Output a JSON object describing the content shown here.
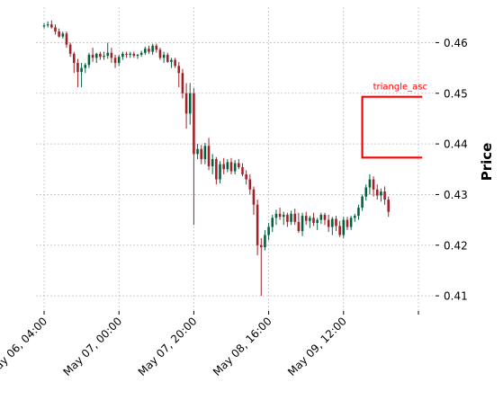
{
  "chart_data": {
    "type": "candlestick",
    "ylabel": "Price",
    "ylim": [
      0.407,
      0.467
    ],
    "yticks": [
      0.41,
      0.42,
      0.43,
      0.44,
      0.45,
      0.46
    ],
    "ytick_labels": [
      "0.41",
      "0.42",
      "0.43",
      "0.44",
      "0.45",
      "0.46"
    ],
    "yaxis_side": "right",
    "grid": true,
    "xticks": [
      {
        "index": 0,
        "label": "May 06, 04:00"
      },
      {
        "index": 20,
        "label": "May 07, 00:00"
      },
      {
        "index": 40,
        "label": "May 07, 20:00"
      },
      {
        "index": 60,
        "label": "May 08, 16:00"
      },
      {
        "index": 80,
        "label": "May 09, 12:00"
      },
      {
        "index": 100,
        "label": ""
      }
    ],
    "colors": {
      "up": "#006340",
      "down": "#a02128",
      "annotation": "#ff0000",
      "grid": "#b0b0b0"
    },
    "candles": [
      [
        0.4632,
        0.4638,
        0.4628,
        0.4634
      ],
      [
        0.4634,
        0.4642,
        0.463,
        0.4636
      ],
      [
        0.4636,
        0.4644,
        0.4628,
        0.463
      ],
      [
        0.463,
        0.4636,
        0.4616,
        0.4622
      ],
      [
        0.4622,
        0.4628,
        0.461,
        0.4612
      ],
      [
        0.4612,
        0.4622,
        0.4608,
        0.4618
      ],
      [
        0.4618,
        0.4622,
        0.459,
        0.4596
      ],
      [
        0.4596,
        0.46,
        0.4572,
        0.4578
      ],
      [
        0.4578,
        0.4582,
        0.454,
        0.456
      ],
      [
        0.456,
        0.4568,
        0.4512,
        0.4542
      ],
      [
        0.4542,
        0.456,
        0.4512,
        0.455
      ],
      [
        0.455,
        0.456,
        0.454,
        0.4556
      ],
      [
        0.4556,
        0.458,
        0.455,
        0.4576
      ],
      [
        0.4576,
        0.459,
        0.4562,
        0.457
      ],
      [
        0.457,
        0.458,
        0.456,
        0.4578
      ],
      [
        0.4578,
        0.4582,
        0.4566,
        0.4572
      ],
      [
        0.4572,
        0.4582,
        0.4566,
        0.4574
      ],
      [
        0.4574,
        0.46,
        0.4568,
        0.458
      ],
      [
        0.458,
        0.459,
        0.456,
        0.457
      ],
      [
        0.457,
        0.4576,
        0.455,
        0.456
      ],
      [
        0.456,
        0.4576,
        0.4554,
        0.4572
      ],
      [
        0.4572,
        0.4582,
        0.4566,
        0.4578
      ],
      [
        0.4578,
        0.4582,
        0.457,
        0.4576
      ],
      [
        0.4576,
        0.4582,
        0.457,
        0.4578
      ],
      [
        0.4578,
        0.4582,
        0.457,
        0.4574
      ],
      [
        0.4574,
        0.4578,
        0.4568,
        0.4576
      ],
      [
        0.4576,
        0.4584,
        0.4572,
        0.458
      ],
      [
        0.458,
        0.4592,
        0.4576,
        0.4588
      ],
      [
        0.4588,
        0.4594,
        0.4578,
        0.4582
      ],
      [
        0.4582,
        0.4598,
        0.4576,
        0.4594
      ],
      [
        0.4594,
        0.4598,
        0.458,
        0.4586
      ],
      [
        0.4586,
        0.459,
        0.4566,
        0.457
      ],
      [
        0.457,
        0.4582,
        0.456,
        0.4576
      ],
      [
        0.4576,
        0.458,
        0.456,
        0.4562
      ],
      [
        0.4562,
        0.457,
        0.455,
        0.4566
      ],
      [
        0.4566,
        0.457,
        0.455,
        0.4554
      ],
      [
        0.4554,
        0.4562,
        0.4512,
        0.454
      ],
      [
        0.454,
        0.4548,
        0.449,
        0.45
      ],
      [
        0.45,
        0.452,
        0.443,
        0.446
      ],
      [
        0.446,
        0.452,
        0.4438,
        0.45
      ],
      [
        0.45,
        0.451,
        0.424,
        0.438
      ],
      [
        0.438,
        0.44,
        0.437,
        0.439
      ],
      [
        0.439,
        0.4398,
        0.436,
        0.437
      ],
      [
        0.437,
        0.4402,
        0.436,
        0.4396
      ],
      [
        0.4396,
        0.4412,
        0.4348,
        0.4356
      ],
      [
        0.4356,
        0.438,
        0.434,
        0.437
      ],
      [
        0.437,
        0.4374,
        0.432,
        0.433
      ],
      [
        0.433,
        0.4366,
        0.4322,
        0.436
      ],
      [
        0.436,
        0.4372,
        0.434,
        0.435
      ],
      [
        0.435,
        0.437,
        0.4344,
        0.4364
      ],
      [
        0.4364,
        0.4372,
        0.434,
        0.4346
      ],
      [
        0.4346,
        0.4368,
        0.434,
        0.4362
      ],
      [
        0.4362,
        0.437,
        0.435,
        0.4354
      ],
      [
        0.4354,
        0.4362,
        0.4336,
        0.434
      ],
      [
        0.434,
        0.4348,
        0.432,
        0.433
      ],
      [
        0.433,
        0.434,
        0.43,
        0.431
      ],
      [
        0.431,
        0.4316,
        0.426,
        0.428
      ],
      [
        0.428,
        0.429,
        0.418,
        0.42
      ],
      [
        0.42,
        0.4214,
        0.41,
        0.4196
      ],
      [
        0.4196,
        0.423,
        0.419,
        0.422
      ],
      [
        0.422,
        0.4244,
        0.421,
        0.4236
      ],
      [
        0.4236,
        0.426,
        0.4226,
        0.4254
      ],
      [
        0.4254,
        0.427,
        0.424,
        0.4262
      ],
      [
        0.4262,
        0.4274,
        0.425,
        0.4256
      ],
      [
        0.4256,
        0.4266,
        0.424,
        0.426
      ],
      [
        0.426,
        0.4264,
        0.4236,
        0.4246
      ],
      [
        0.4246,
        0.4268,
        0.424,
        0.4262
      ],
      [
        0.4262,
        0.4272,
        0.424,
        0.4246
      ],
      [
        0.4246,
        0.4264,
        0.4224,
        0.4228
      ],
      [
        0.4228,
        0.4264,
        0.4218,
        0.4258
      ],
      [
        0.4258,
        0.4266,
        0.424,
        0.4248
      ],
      [
        0.4248,
        0.4258,
        0.4234,
        0.4254
      ],
      [
        0.4254,
        0.4264,
        0.4238,
        0.4244
      ],
      [
        0.4244,
        0.4254,
        0.423,
        0.425
      ],
      [
        0.425,
        0.4264,
        0.4242,
        0.426
      ],
      [
        0.426,
        0.4264,
        0.424,
        0.425
      ],
      [
        0.425,
        0.426,
        0.4226,
        0.4236
      ],
      [
        0.4236,
        0.4256,
        0.422,
        0.4252
      ],
      [
        0.4252,
        0.4258,
        0.4228,
        0.4238
      ],
      [
        0.4238,
        0.4248,
        0.4216,
        0.422
      ],
      [
        0.422,
        0.4256,
        0.4214,
        0.425
      ],
      [
        0.425,
        0.4256,
        0.423,
        0.4236
      ],
      [
        0.4236,
        0.4258,
        0.423,
        0.4254
      ],
      [
        0.4254,
        0.4262,
        0.4246,
        0.4258
      ],
      [
        0.4258,
        0.428,
        0.425,
        0.4274
      ],
      [
        0.4274,
        0.43,
        0.4268,
        0.4296
      ],
      [
        0.4296,
        0.432,
        0.4288,
        0.4314
      ],
      [
        0.4314,
        0.434,
        0.43,
        0.433
      ],
      [
        0.433,
        0.4336,
        0.4296,
        0.431
      ],
      [
        0.431,
        0.432,
        0.429,
        0.4298
      ],
      [
        0.4298,
        0.4312,
        0.4286,
        0.4306
      ],
      [
        0.4306,
        0.4316,
        0.428,
        0.429
      ],
      [
        0.429,
        0.4296,
        0.4256,
        0.4266
      ]
    ],
    "annotations": [
      {
        "label": "triangle_asc",
        "x_start": 85,
        "x_end": 101,
        "y_top": 0.4493,
        "y_bottom": 0.4373
      }
    ]
  }
}
